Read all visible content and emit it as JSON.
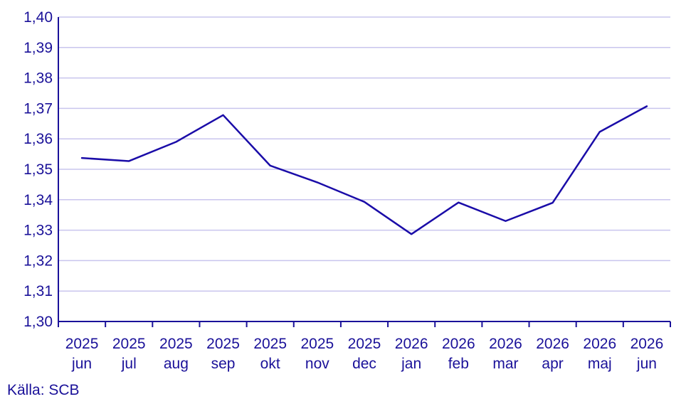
{
  "chart_data": {
    "type": "line",
    "title": "",
    "xlabel": "",
    "ylabel": "",
    "categories": [
      [
        "2025",
        "jun"
      ],
      [
        "2025",
        "jul"
      ],
      [
        "2025",
        "aug"
      ],
      [
        "2025",
        "sep"
      ],
      [
        "2025",
        "okt"
      ],
      [
        "2025",
        "nov"
      ],
      [
        "2025",
        "dec"
      ],
      [
        "2026",
        "jan"
      ],
      [
        "2026",
        "feb"
      ],
      [
        "2026",
        "mar"
      ],
      [
        "2026",
        "apr"
      ],
      [
        "2026",
        "maj"
      ],
      [
        "2026",
        "jun"
      ]
    ],
    "series": [
      {
        "values": [
          1.3537,
          1.3527,
          1.359,
          1.3678,
          1.3512,
          1.3457,
          1.3393,
          1.3287,
          1.3391,
          1.333,
          1.339,
          1.3623,
          1.3707
        ]
      }
    ],
    "ylim": [
      1.3,
      1.4
    ],
    "yticks": [
      "1,30",
      "1,31",
      "1,32",
      "1,33",
      "1,34",
      "1,35",
      "1,36",
      "1,37",
      "1,38",
      "1,39",
      "1,40"
    ],
    "grid": true,
    "legend": "none",
    "colors": {
      "line": "#1a0ca8",
      "grid": "#c9c5ee",
      "axis": "#1a1199",
      "text": "#1a1199"
    }
  },
  "source": "Källa: SCB"
}
